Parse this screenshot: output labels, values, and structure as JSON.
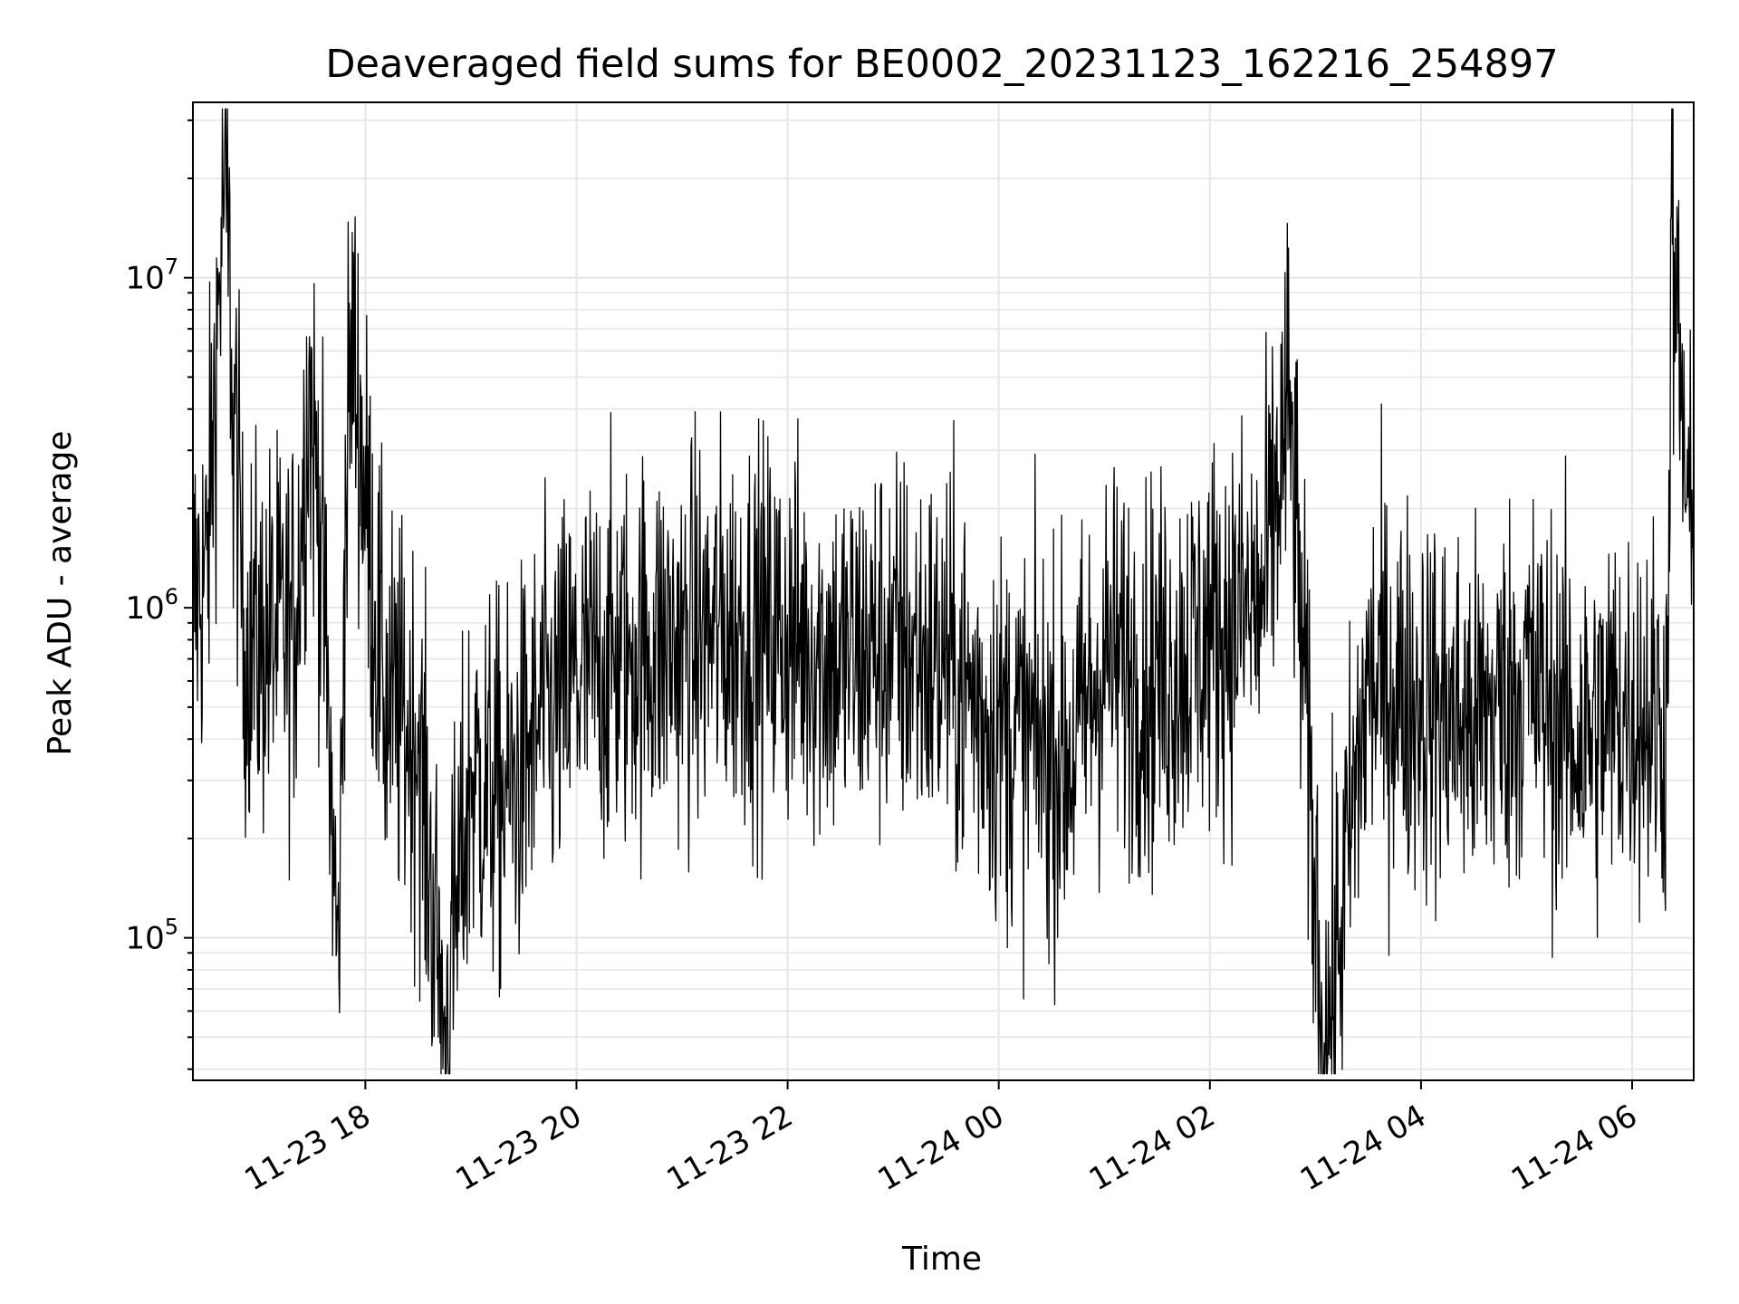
{
  "chart_data": {
    "type": "line",
    "title": "Deaveraged field sums for BE0002_20231123_162216_254897",
    "xlabel": "Time",
    "ylabel": "Peak ADU - average",
    "y_scale": "log",
    "ylim": [
      37000,
      34000000
    ],
    "xlim": [
      "2023-11-23 16:22",
      "2023-11-24 06:35"
    ],
    "grid": true,
    "line_color": "#000000",
    "grid_color": "#e6e6e6",
    "x_ticks": [
      {
        "value": "2023-11-23 18:00",
        "label": "11-23 18"
      },
      {
        "value": "2023-11-23 20:00",
        "label": "11-23 20"
      },
      {
        "value": "2023-11-23 22:00",
        "label": "11-23 22"
      },
      {
        "value": "2023-11-24 00:00",
        "label": "11-24 00"
      },
      {
        "value": "2023-11-24 02:00",
        "label": "11-24 02"
      },
      {
        "value": "2023-11-24 04:00",
        "label": "11-24 04"
      },
      {
        "value": "2023-11-24 06:00",
        "label": "11-24 06"
      }
    ],
    "y_ticks": [
      {
        "value": 100000,
        "base": "10",
        "exp": "5"
      },
      {
        "value": 1000000,
        "base": "10",
        "exp": "6"
      },
      {
        "value": 10000000,
        "base": "10",
        "exp": "7"
      }
    ],
    "series": [
      {
        "x": [
          "2023-11-23 16:22",
          "2023-11-23 16:30",
          "2023-11-23 16:40",
          "2023-11-23 16:50",
          "2023-11-23 16:45",
          "2023-11-23 17:00",
          "2023-11-23 17:20",
          "2023-11-23 17:28",
          "2023-11-23 17:35",
          "2023-11-23 17:45",
          "2023-11-23 17:48",
          "2023-11-23 17:52",
          "2023-11-23 18:10",
          "2023-11-23 18:30",
          "2023-11-23 18:45",
          "2023-11-23 19:00",
          "2023-11-23 19:20",
          "2023-11-23 19:40",
          "2023-11-23 20:00",
          "2023-11-23 20:30",
          "2023-11-23 21:00",
          "2023-11-23 21:30",
          "2023-11-23 22:00",
          "2023-11-23 22:30",
          "2023-11-23 23:00",
          "2023-11-23 23:30",
          "2023-11-24 00:00",
          "2023-11-24 00:40",
          "2023-11-24 01:00",
          "2023-11-24 01:30",
          "2023-11-24 02:00",
          "2023-11-24 02:30",
          "2023-11-24 02:45",
          "2023-11-24 03:05",
          "2023-11-24 03:30",
          "2023-11-24 04:00",
          "2023-11-24 04:30",
          "2023-11-24 05:00",
          "2023-11-24 05:30",
          "2023-11-24 06:00",
          "2023-11-24 06:20",
          "2023-11-24 06:22",
          "2023-11-24 06:35"
        ],
        "y": [
          1200000,
          1500000,
          25000000,
          1300000,
          1000000,
          900000,
          1000000,
          5500000,
          1800000,
          75000,
          1500000,
          8000000,
          600000,
          450000,
          62000,
          350000,
          300000,
          500000,
          700000,
          850000,
          900000,
          1000000,
          950000,
          800000,
          900000,
          750000,
          500000,
          400000,
          800000,
          700000,
          950000,
          1200000,
          4800000,
          48000,
          700000,
          600000,
          500000,
          700000,
          450000,
          600000,
          500000,
          15000000,
          1200000
        ]
      }
    ]
  }
}
